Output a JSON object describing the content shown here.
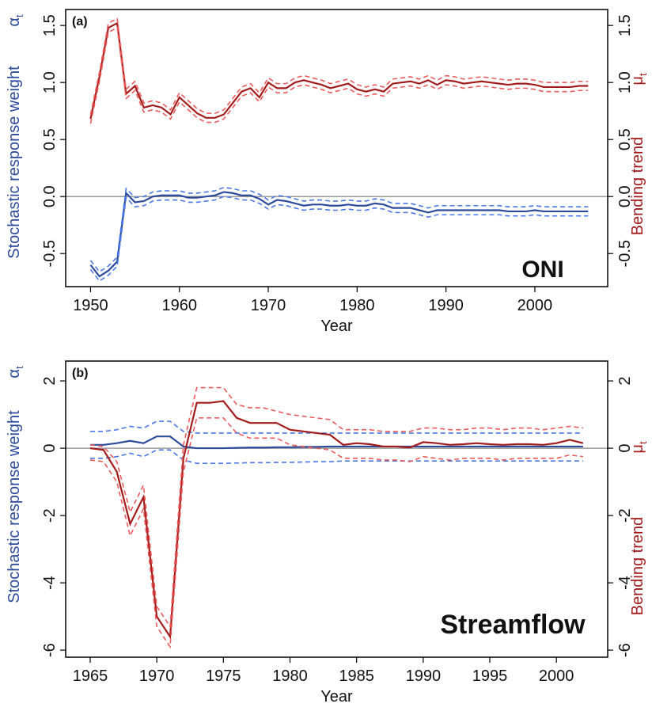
{
  "chart_data": [
    {
      "type": "line",
      "panel_label": "(a)",
      "annotation": "ONI",
      "x_label": "Year",
      "y_label": "Stochastic response weight",
      "y_symbol": "α",
      "y_symbol_sub": "t",
      "y2_label": "Bending trend",
      "y2_symbol": "μ",
      "y2_symbol_sub": "t",
      "x": [
        1950,
        1951,
        1952,
        1953,
        1954,
        1955,
        1956,
        1957,
        1958,
        1959,
        1960,
        1961,
        1962,
        1963,
        1964,
        1965,
        1966,
        1967,
        1968,
        1969,
        1970,
        1971,
        1972,
        1973,
        1974,
        1975,
        1976,
        1977,
        1978,
        1979,
        1980,
        1981,
        1982,
        1983,
        1984,
        1985,
        1986,
        1987,
        1988,
        1989,
        1990,
        1991,
        1992,
        1993,
        1994,
        1995,
        1996,
        1997,
        1998,
        1999,
        2000,
        2001,
        2002,
        2003,
        2004,
        2005,
        2006
      ],
      "xlim": [
        1947.2,
        2008.2
      ],
      "xticks": [
        1950,
        1960,
        1970,
        1980,
        1990,
        2000
      ],
      "ylim": [
        -0.79,
        1.64
      ],
      "yticks": [
        -0.5,
        {
          "value": 0,
          "label": "0.0"
        },
        0.5,
        {
          "value": 1,
          "label": "1.0"
        },
        1.5
      ],
      "y2lim": [
        -0.79,
        1.64
      ],
      "y2ticks": [
        -0.5,
        {
          "value": 0,
          "label": "0.0"
        },
        0.5,
        {
          "value": 1,
          "label": "1.0"
        },
        1.5
      ],
      "hline": 0,
      "series": [
        {
          "color": "#2c4b9b",
          "style": "solid",
          "axis": "y",
          "values": [
            -0.6,
            -0.7,
            -0.65,
            -0.57,
            0.03,
            -0.05,
            -0.04,
            0.0,
            0.01,
            0.01,
            0.01,
            -0.01,
            -0.01,
            0.0,
            0.01,
            0.04,
            0.03,
            0.01,
            0.01,
            -0.02,
            -0.07,
            -0.03,
            -0.04,
            -0.06,
            -0.08,
            -0.07,
            -0.07,
            -0.08,
            -0.08,
            -0.07,
            -0.08,
            -0.08,
            -0.06,
            -0.07,
            -0.1,
            -0.1,
            -0.1,
            -0.12,
            -0.14,
            -0.12,
            -0.12,
            -0.12,
            -0.12,
            -0.12,
            -0.12,
            -0.12,
            -0.12,
            -0.13,
            -0.13,
            -0.13,
            -0.12,
            -0.13,
            -0.13,
            -0.13,
            -0.13,
            -0.13,
            -0.13
          ]
        },
        {
          "color": "#4a78e6",
          "style": "dashed",
          "axis": "y",
          "values": [
            -0.56,
            -0.66,
            -0.61,
            -0.53,
            0.07,
            -0.01,
            0.0,
            0.04,
            0.05,
            0.05,
            0.05,
            0.03,
            0.03,
            0.04,
            0.05,
            0.08,
            0.07,
            0.05,
            0.05,
            0.02,
            -0.03,
            0.01,
            0.0,
            -0.02,
            -0.04,
            -0.03,
            -0.03,
            -0.04,
            -0.04,
            -0.03,
            -0.04,
            -0.04,
            -0.02,
            -0.03,
            -0.06,
            -0.06,
            -0.06,
            -0.08,
            -0.1,
            -0.08,
            -0.08,
            -0.08,
            -0.08,
            -0.08,
            -0.08,
            -0.08,
            -0.08,
            -0.09,
            -0.09,
            -0.09,
            -0.08,
            -0.09,
            -0.09,
            -0.09,
            -0.09,
            -0.09,
            -0.09
          ]
        },
        {
          "color": "#4a78e6",
          "style": "dashed",
          "axis": "y",
          "values": [
            -0.64,
            -0.74,
            -0.69,
            -0.61,
            -0.01,
            -0.09,
            -0.08,
            -0.04,
            -0.03,
            -0.03,
            -0.03,
            -0.05,
            -0.05,
            -0.04,
            -0.03,
            0.0,
            -0.01,
            -0.03,
            -0.03,
            -0.06,
            -0.11,
            -0.07,
            -0.08,
            -0.1,
            -0.12,
            -0.11,
            -0.11,
            -0.12,
            -0.12,
            -0.11,
            -0.12,
            -0.12,
            -0.1,
            -0.11,
            -0.14,
            -0.14,
            -0.14,
            -0.16,
            -0.18,
            -0.16,
            -0.16,
            -0.16,
            -0.16,
            -0.16,
            -0.16,
            -0.16,
            -0.16,
            -0.17,
            -0.17,
            -0.17,
            -0.16,
            -0.17,
            -0.17,
            -0.17,
            -0.17,
            -0.17,
            -0.17
          ]
        },
        {
          "color": "#a31c1c",
          "style": "solid",
          "axis": "y2",
          "values": [
            0.68,
            1.05,
            1.48,
            1.52,
            0.9,
            0.97,
            0.78,
            0.8,
            0.78,
            0.72,
            0.87,
            0.8,
            0.73,
            0.69,
            0.69,
            0.72,
            0.82,
            0.92,
            0.95,
            0.87,
            1.0,
            0.95,
            0.95,
            1.0,
            1.02,
            1.0,
            0.98,
            0.95,
            0.97,
            0.99,
            0.94,
            0.92,
            0.94,
            0.92,
            0.99,
            1.0,
            1.01,
            0.99,
            1.02,
            0.98,
            1.02,
            1.01,
            0.99,
            1.0,
            1.01,
            1.0,
            0.99,
            0.98,
            0.99,
            0.99,
            0.98,
            0.96,
            0.96,
            0.96,
            0.96,
            0.97,
            0.97
          ]
        },
        {
          "color": "#ec5b5b",
          "style": "dashed",
          "axis": "y2",
          "values": [
            0.72,
            1.09,
            1.52,
            1.56,
            0.94,
            1.01,
            0.82,
            0.84,
            0.82,
            0.76,
            0.91,
            0.84,
            0.77,
            0.73,
            0.73,
            0.76,
            0.86,
            0.96,
            0.99,
            0.91,
            1.04,
            0.99,
            0.99,
            1.04,
            1.06,
            1.04,
            1.02,
            0.99,
            1.01,
            1.03,
            0.98,
            0.96,
            0.98,
            0.96,
            1.03,
            1.04,
            1.05,
            1.03,
            1.06,
            1.02,
            1.06,
            1.05,
            1.03,
            1.04,
            1.05,
            1.04,
            1.03,
            1.02,
            1.03,
            1.03,
            1.02,
            1.0,
            1.0,
            1.0,
            1.0,
            1.01,
            1.01
          ]
        },
        {
          "color": "#ec5b5b",
          "style": "dashed",
          "axis": "y2",
          "values": [
            0.64,
            1.01,
            1.44,
            1.48,
            0.86,
            0.93,
            0.74,
            0.76,
            0.74,
            0.68,
            0.83,
            0.76,
            0.69,
            0.65,
            0.65,
            0.68,
            0.78,
            0.88,
            0.91,
            0.83,
            0.96,
            0.91,
            0.91,
            0.96,
            0.98,
            0.96,
            0.94,
            0.91,
            0.93,
            0.95,
            0.9,
            0.88,
            0.9,
            0.88,
            0.95,
            0.96,
            0.97,
            0.95,
            0.98,
            0.94,
            0.98,
            0.97,
            0.95,
            0.96,
            0.97,
            0.96,
            0.95,
            0.94,
            0.95,
            0.95,
            0.94,
            0.92,
            0.92,
            0.92,
            0.92,
            0.93,
            0.93
          ]
        }
      ]
    },
    {
      "type": "line",
      "panel_label": "(b)",
      "annotation": "Streamflow",
      "x_label": "Year",
      "y_label": "Stochastic response weight",
      "y_symbol": "α",
      "y_symbol_sub": "t",
      "y2_label": "Bending trend",
      "y2_symbol": "μ",
      "y2_symbol_sub": "t",
      "x": [
        1965,
        1966,
        1967,
        1968,
        1969,
        1970,
        1971,
        1972,
        1973,
        1974,
        1975,
        1976,
        1977,
        1978,
        1979,
        1980,
        1981,
        1982,
        1983,
        1984,
        1985,
        1986,
        1987,
        1988,
        1989,
        1990,
        1991,
        1992,
        1993,
        1994,
        1995,
        1996,
        1997,
        1998,
        1999,
        2000,
        2001,
        2002
      ],
      "xlim": [
        1963.16,
        2003.85
      ],
      "xticks": [
        1965,
        1970,
        1975,
        1980,
        1985,
        1990,
        1995,
        2000
      ],
      "ylim": [
        -6.21,
        2.59
      ],
      "yticks": [
        -6,
        -4,
        -2,
        0,
        2
      ],
      "y2lim": [
        -6.21,
        2.59
      ],
      "y2ticks": [
        -6,
        -4,
        -2,
        0,
        2
      ],
      "hline": 0,
      "series": [
        {
          "color": "#2c4b9b",
          "style": "solid",
          "axis": "y",
          "values": [
            0.1,
            0.1,
            0.15,
            0.22,
            0.15,
            0.35,
            0.35,
            0.05,
            0.0,
            0.0,
            0.0,
            0.01,
            0.02,
            0.02,
            0.03,
            0.03,
            0.04,
            0.04,
            0.05,
            0.05,
            0.05,
            0.05,
            0.05,
            0.05,
            0.05,
            0.05,
            0.05,
            0.05,
            0.05,
            0.05,
            0.05,
            0.05,
            0.05,
            0.05,
            0.05,
            0.05,
            0.05,
            0.05
          ]
        },
        {
          "color": "#4a78e6",
          "style": "dashed",
          "axis": "y",
          "values": [
            0.5,
            0.5,
            0.55,
            0.65,
            0.6,
            0.8,
            0.8,
            0.5,
            0.45,
            0.45,
            0.45,
            0.45,
            0.45,
            0.45,
            0.45,
            0.45,
            0.45,
            0.45,
            0.45,
            0.45,
            0.45,
            0.45,
            0.45,
            0.45,
            0.45,
            0.45,
            0.45,
            0.45,
            0.45,
            0.45,
            0.45,
            0.45,
            0.45,
            0.45,
            0.45,
            0.45,
            0.45,
            0.45
          ]
        },
        {
          "color": "#4a78e6",
          "style": "dashed",
          "axis": "y",
          "values": [
            -0.3,
            -0.3,
            -0.25,
            -0.15,
            -0.25,
            -0.05,
            -0.05,
            -0.35,
            -0.45,
            -0.45,
            -0.45,
            -0.44,
            -0.43,
            -0.43,
            -0.42,
            -0.42,
            -0.41,
            -0.4,
            -0.4,
            -0.38,
            -0.38,
            -0.38,
            -0.38,
            -0.38,
            -0.38,
            -0.38,
            -0.38,
            -0.38,
            -0.38,
            -0.38,
            -0.38,
            -0.38,
            -0.38,
            -0.38,
            -0.38,
            -0.38,
            -0.38,
            -0.38
          ]
        },
        {
          "color": "#a31c1c",
          "style": "solid",
          "axis": "y2",
          "values": [
            0.0,
            -0.05,
            -0.7,
            -2.25,
            -1.45,
            -5.0,
            -5.6,
            -0.3,
            1.35,
            1.35,
            1.4,
            0.9,
            0.75,
            0.75,
            0.75,
            0.55,
            0.5,
            0.45,
            0.4,
            0.1,
            0.15,
            0.12,
            0.05,
            0.05,
            0.02,
            0.18,
            0.15,
            0.1,
            0.12,
            0.15,
            0.12,
            0.1,
            0.12,
            0.12,
            0.1,
            0.15,
            0.25,
            0.15
          ]
        },
        {
          "color": "#ec5b5b",
          "style": "dashed",
          "axis": "y2",
          "values": [
            0.1,
            0.05,
            -0.4,
            -1.9,
            -1.1,
            -4.7,
            -5.3,
            0.1,
            1.8,
            1.8,
            1.8,
            1.3,
            1.2,
            1.2,
            1.1,
            1.0,
            0.95,
            0.9,
            0.85,
            0.55,
            0.55,
            0.55,
            0.5,
            0.5,
            0.5,
            0.6,
            0.6,
            0.55,
            0.55,
            0.6,
            0.6,
            0.55,
            0.6,
            0.6,
            0.55,
            0.6,
            0.65,
            0.6
          ]
        },
        {
          "color": "#ec5b5b",
          "style": "dashed",
          "axis": "y2",
          "values": [
            -0.35,
            -0.4,
            -1.0,
            -2.6,
            -1.8,
            -5.3,
            -5.9,
            -0.7,
            0.9,
            0.9,
            0.9,
            0.45,
            0.3,
            0.3,
            0.3,
            0.1,
            0.05,
            0.0,
            -0.05,
            -0.3,
            -0.3,
            -0.3,
            -0.35,
            -0.35,
            -0.4,
            -0.25,
            -0.3,
            -0.35,
            -0.3,
            -0.3,
            -0.3,
            -0.35,
            -0.3,
            -0.3,
            -0.3,
            -0.3,
            -0.2,
            -0.25
          ]
        }
      ]
    }
  ]
}
